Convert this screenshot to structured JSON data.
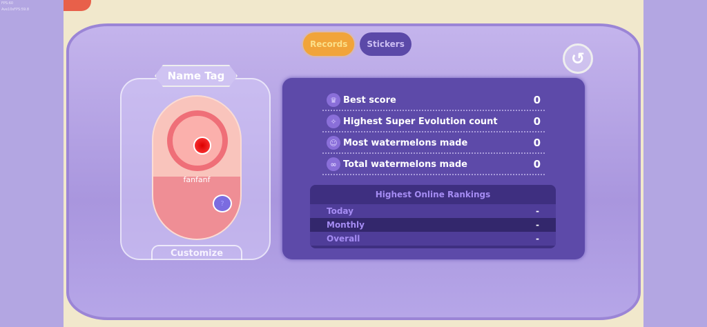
{
  "debug": {
    "fps": "FPS:60",
    "avg_fps": "Ave10sFPS:59.8"
  },
  "tabs": [
    {
      "label": "Records",
      "active": true
    },
    {
      "label": "Stickers",
      "active": false
    }
  ],
  "back_icon": "undo-arrow-icon",
  "name_tag": {
    "title": "Name Tag",
    "username": "fanfanf",
    "customize_label": "Customize"
  },
  "records": [
    {
      "icon": "crown-icon",
      "label": "Best score",
      "value": "0"
    },
    {
      "icon": "sparkle-icon",
      "label": "Highest Super Evolution count",
      "value": "0"
    },
    {
      "icon": "watermelon-face-icon",
      "label": "Most watermelons made",
      "value": "0"
    },
    {
      "icon": "double-watermelon-icon",
      "label": "Total watermelons made",
      "value": "0"
    }
  ],
  "rankings": {
    "title": "Highest Online Rankings",
    "rows": [
      {
        "label": "Today",
        "value": "-"
      },
      {
        "label": "Monthly",
        "value": "-"
      },
      {
        "label": "Overall",
        "value": "-"
      }
    ]
  },
  "colors": {
    "accent_tab": "#f1a43a",
    "panel": "#5d4aa9",
    "background": "#b3a6e2"
  }
}
